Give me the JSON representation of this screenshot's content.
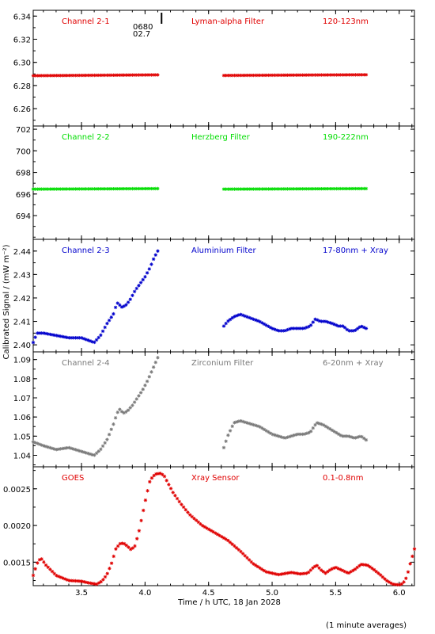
{
  "colors": {
    "red": "#e00000",
    "green": "#00dd00",
    "blue": "#0000cc",
    "gray": "#7a7a7a",
    "axis": "#000000"
  },
  "text": {
    "x_axis_title": "Time / h UTC, 18 Jan 2028",
    "y_axis_title": "Calibrated Signal / (mW m⁻²)",
    "footer": "(1 minute averages)",
    "marker_label_1": "0680",
    "marker_label_2": "02.7"
  },
  "chart_data": {
    "type": "scatter",
    "x_axis": {
      "label": "Time / h UTC, 18 Jan 2028",
      "range": [
        3.12,
        6.12
      ],
      "ticks": [
        3.5,
        4.0,
        4.5,
        5.0,
        5.5,
        6.0
      ],
      "tick_labels": [
        "3.5",
        "4.0",
        "4.5",
        "5.0",
        "5.5",
        "6.0"
      ]
    },
    "y_axis_label": "Calibrated Signal / (mW m⁻²)",
    "marker": {
      "x": 4.13,
      "labels": [
        "0680",
        "02.7"
      ]
    },
    "panels": [
      {
        "name": "panel-channel-2-1",
        "color": "red",
        "labels": [
          "Channel 2-1",
          "Lyman-alpha Filter",
          "120-123nm"
        ],
        "ylim": [
          6.245,
          6.345
        ],
        "ticks": [
          6.26,
          6.28,
          6.3,
          6.32,
          6.34
        ],
        "tick_labels": [
          "6.26",
          "6.28",
          "6.30",
          "6.32",
          "6.34"
        ],
        "series": [
          {
            "x": [
              3.12,
              4.1
            ],
            "y": [
              6.2885,
              6.2892
            ]
          },
          {
            "x": [
              4.62,
              5.74
            ],
            "y": [
              6.2887,
              6.2893
            ]
          }
        ]
      },
      {
        "name": "panel-channel-2-2",
        "color": "green",
        "labels": [
          "Channel 2-2",
          "Herzberg Filter",
          "190-222nm"
        ],
        "ylim": [
          691.8,
          702.3
        ],
        "ticks": [
          694,
          696,
          698,
          700,
          702
        ],
        "tick_labels": [
          "694",
          "696",
          "698",
          "700",
          "702"
        ],
        "series": [
          {
            "x": [
              3.12,
              4.1
            ],
            "y": [
              696.45,
              696.5
            ]
          },
          {
            "x": [
              4.62,
              5.74
            ],
            "y": [
              696.45,
              696.5
            ]
          }
        ]
      },
      {
        "name": "panel-channel-2-3",
        "color": "blue",
        "labels": [
          "Channel 2-3",
          "Aluminium Filter",
          "17-80nm + Xray"
        ],
        "ylim": [
          2.397,
          2.445
        ],
        "ticks": [
          2.4,
          2.41,
          2.42,
          2.43,
          2.44
        ],
        "tick_labels": [
          "2.40",
          "2.41",
          "2.42",
          "2.43",
          "2.44"
        ],
        "series": [
          {
            "x": [
              3.12,
              3.15,
              3.2,
              3.3,
              3.4,
              3.5,
              3.55,
              3.6,
              3.65,
              3.7,
              3.75,
              3.78,
              3.8,
              3.82,
              3.85,
              3.88,
              3.92,
              3.96,
              4.0,
              4.04,
              4.07,
              4.1
            ],
            "y": [
              2.401,
              2.405,
              2.405,
              2.404,
              2.403,
              2.403,
              2.402,
              2.401,
              2.404,
              2.409,
              2.413,
              2.418,
              2.417,
              2.416,
              2.417,
              2.419,
              2.423,
              2.426,
              2.429,
              2.433,
              2.437,
              2.44
            ]
          },
          {
            "x": [
              4.62,
              4.65,
              4.7,
              4.75,
              4.8,
              4.9,
              5.0,
              5.05,
              5.1,
              5.15,
              5.2,
              5.25,
              5.3,
              5.34,
              5.38,
              5.42,
              5.48,
              5.52,
              5.56,
              5.6,
              5.65,
              5.7,
              5.74
            ],
            "y": [
              2.408,
              2.41,
              2.412,
              2.413,
              2.412,
              2.41,
              2.407,
              2.406,
              2.406,
              2.407,
              2.407,
              2.407,
              2.408,
              2.411,
              2.41,
              2.41,
              2.409,
              2.408,
              2.408,
              2.406,
              2.406,
              2.408,
              2.407
            ]
          }
        ]
      },
      {
        "name": "panel-channel-2-4",
        "color": "gray",
        "labels": [
          "Channel 2-4",
          "Zirconium Filter",
          "6-20nm + Xray"
        ],
        "ylim": [
          1.034,
          1.094
        ],
        "ticks": [
          1.04,
          1.05,
          1.06,
          1.07,
          1.08,
          1.09
        ],
        "tick_labels": [
          "1.04",
          "1.05",
          "1.06",
          "1.07",
          "1.08",
          "1.09"
        ],
        "series": [
          {
            "x": [
              3.12,
              3.2,
              3.3,
              3.4,
              3.45,
              3.5,
              3.55,
              3.6,
              3.65,
              3.7,
              3.75,
              3.78,
              3.8,
              3.83,
              3.86,
              3.9,
              3.94,
              3.98,
              4.02,
              4.06,
              4.1
            ],
            "y": [
              1.047,
              1.045,
              1.043,
              1.044,
              1.043,
              1.042,
              1.041,
              1.04,
              1.043,
              1.048,
              1.056,
              1.062,
              1.064,
              1.062,
              1.063,
              1.066,
              1.07,
              1.074,
              1.079,
              1.085,
              1.091
            ]
          },
          {
            "x": [
              4.62,
              4.65,
              4.7,
              4.75,
              4.8,
              4.9,
              4.95,
              5.0,
              5.05,
              5.1,
              5.15,
              5.2,
              5.25,
              5.3,
              5.35,
              5.4,
              5.45,
              5.5,
              5.55,
              5.6,
              5.65,
              5.7,
              5.74
            ],
            "y": [
              1.044,
              1.05,
              1.057,
              1.058,
              1.057,
              1.055,
              1.053,
              1.051,
              1.05,
              1.049,
              1.05,
              1.051,
              1.051,
              1.052,
              1.057,
              1.056,
              1.054,
              1.052,
              1.05,
              1.05,
              1.049,
              1.05,
              1.048
            ]
          }
        ]
      },
      {
        "name": "panel-goes",
        "color": "red",
        "labels": [
          "GOES",
          "Xray Sensor",
          "0.1-0.8nm"
        ],
        "ylim": [
          0.00118,
          0.0028
        ],
        "ticks": [
          0.0015,
          0.002,
          0.0025
        ],
        "tick_labels": [
          "0.0015",
          "0.0020",
          "0.0025"
        ],
        "series": [
          {
            "x": [
              3.12,
              3.15,
              3.18,
              3.22,
              3.3,
              3.4,
              3.5,
              3.55,
              3.62,
              3.66,
              3.7,
              3.74,
              3.77,
              3.8,
              3.83,
              3.86,
              3.89,
              3.92,
              3.95,
              3.98,
              4.01,
              4.04,
              4.08,
              4.12,
              4.15,
              4.18,
              4.22,
              4.28,
              4.35,
              4.45,
              4.55,
              4.65,
              4.75,
              4.85,
              4.95,
              5.05,
              5.15,
              5.22,
              5.28,
              5.32,
              5.35,
              5.38,
              5.42,
              5.46,
              5.5,
              5.55,
              5.6,
              5.65,
              5.7,
              5.75,
              5.8,
              5.85,
              5.9,
              5.95,
              6.0,
              6.03,
              6.06,
              6.09,
              6.12
            ],
            "y": [
              0.00132,
              0.00148,
              0.00156,
              0.00146,
              0.00132,
              0.00125,
              0.00124,
              0.00122,
              0.0012,
              0.00124,
              0.00133,
              0.0015,
              0.00168,
              0.00175,
              0.00176,
              0.00172,
              0.00167,
              0.00172,
              0.0019,
              0.00215,
              0.0024,
              0.00262,
              0.0027,
              0.00271,
              0.00268,
              0.00258,
              0.00245,
              0.0023,
              0.00215,
              0.002,
              0.0019,
              0.0018,
              0.00165,
              0.00148,
              0.00137,
              0.00133,
              0.00136,
              0.00134,
              0.00135,
              0.00142,
              0.00146,
              0.0014,
              0.00135,
              0.0014,
              0.00143,
              0.00139,
              0.00135,
              0.0014,
              0.00147,
              0.00146,
              0.0014,
              0.00133,
              0.00125,
              0.0012,
              0.00119,
              0.00121,
              0.0013,
              0.0015,
              0.00168
            ]
          }
        ]
      }
    ]
  }
}
